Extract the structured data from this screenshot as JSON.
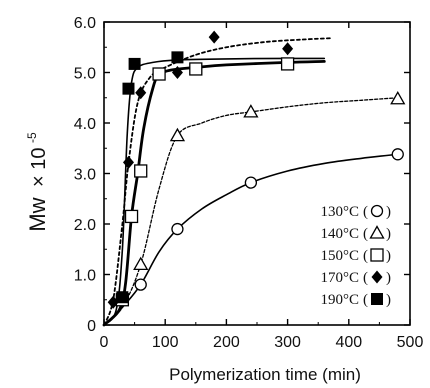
{
  "chart_data": {
    "type": "scatter",
    "xlabel": "Polymerization  time (min)",
    "ylabel_main": "Mw",
    "ylabel_factor": "× 10",
    "ylabel_exponent": "-5",
    "xlim": [
      0,
      500
    ],
    "ylim": [
      0,
      6.0
    ],
    "x_ticks": [
      0,
      100,
      200,
      300,
      400,
      500
    ],
    "x_tick_labels": [
      "0",
      "100",
      "200",
      "300",
      "400",
      "500"
    ],
    "y_ticks": [
      0,
      1,
      2,
      3,
      4,
      5,
      6
    ],
    "y_tick_labels": [
      "0",
      "1.0",
      "2.0",
      "3.0",
      "4.0",
      "5.0",
      "6.0"
    ],
    "grid": false,
    "legend_position": "bottom-right",
    "series": [
      {
        "name": "130°C",
        "marker": "circle-open",
        "line": "solid",
        "points": [
          [
            0,
            0
          ],
          [
            60,
            0.8
          ],
          [
            120,
            1.9
          ],
          [
            240,
            2.82
          ],
          [
            480,
            3.38
          ]
        ],
        "curve": [
          [
            0,
            0
          ],
          [
            30,
            0.35
          ],
          [
            60,
            0.8
          ],
          [
            90,
            1.45
          ],
          [
            120,
            1.9
          ],
          [
            160,
            2.3
          ],
          [
            200,
            2.58
          ],
          [
            240,
            2.82
          ],
          [
            300,
            3.05
          ],
          [
            360,
            3.2
          ],
          [
            420,
            3.3
          ],
          [
            480,
            3.38
          ]
        ]
      },
      {
        "name": "140°C",
        "marker": "triangle-open",
        "line": "dashed",
        "points": [
          [
            0,
            0
          ],
          [
            60,
            1.2
          ],
          [
            120,
            3.75
          ],
          [
            240,
            4.22
          ],
          [
            480,
            4.48
          ]
        ],
        "curve": [
          [
            0,
            0
          ],
          [
            30,
            0.35
          ],
          [
            60,
            1.2
          ],
          [
            90,
            2.7
          ],
          [
            120,
            3.75
          ],
          [
            160,
            4.0
          ],
          [
            200,
            4.15
          ],
          [
            240,
            4.22
          ],
          [
            300,
            4.32
          ],
          [
            360,
            4.4
          ],
          [
            420,
            4.45
          ],
          [
            480,
            4.5
          ]
        ]
      },
      {
        "name": "150°C",
        "marker": "square-open",
        "line": "solid-thick",
        "points": [
          [
            0,
            0
          ],
          [
            30,
            0.5
          ],
          [
            45,
            2.15
          ],
          [
            60,
            3.05
          ],
          [
            90,
            4.97
          ],
          [
            150,
            5.07
          ],
          [
            300,
            5.17
          ]
        ],
        "curve": [
          [
            0,
            0
          ],
          [
            25,
            0.3
          ],
          [
            35,
            0.8
          ],
          [
            45,
            2.15
          ],
          [
            55,
            3.0
          ],
          [
            65,
            3.9
          ],
          [
            80,
            4.7
          ],
          [
            90,
            4.95
          ],
          [
            110,
            5.05
          ],
          [
            150,
            5.1
          ],
          [
            200,
            5.15
          ],
          [
            300,
            5.2
          ],
          [
            360,
            5.22
          ]
        ]
      },
      {
        "name": "170°C",
        "marker": "diamond-filled",
        "line": "dotted",
        "points": [
          [
            15,
            0.45
          ],
          [
            40,
            3.22
          ],
          [
            60,
            4.6
          ],
          [
            120,
            5.0
          ],
          [
            180,
            5.7
          ],
          [
            300,
            5.47
          ]
        ],
        "curve": [
          [
            0,
            0
          ],
          [
            15,
            0.5
          ],
          [
            30,
            2.0
          ],
          [
            40,
            3.2
          ],
          [
            55,
            4.4
          ],
          [
            75,
            4.9
          ],
          [
            100,
            5.1
          ],
          [
            150,
            5.35
          ],
          [
            200,
            5.5
          ],
          [
            260,
            5.6
          ],
          [
            320,
            5.65
          ],
          [
            370,
            5.68
          ]
        ]
      },
      {
        "name": "190°C",
        "marker": "square-filled",
        "line": "solid",
        "points": [
          [
            30,
            0.55
          ],
          [
            40,
            4.68
          ],
          [
            50,
            5.17
          ],
          [
            120,
            5.3
          ]
        ],
        "curve": [
          [
            0,
            0
          ],
          [
            20,
            0.3
          ],
          [
            30,
            1.5
          ],
          [
            38,
            3.8
          ],
          [
            45,
            4.8
          ],
          [
            55,
            5.1
          ],
          [
            80,
            5.2
          ],
          [
            120,
            5.25
          ],
          [
            200,
            5.27
          ],
          [
            300,
            5.28
          ],
          [
            360,
            5.28
          ]
        ]
      }
    ]
  }
}
